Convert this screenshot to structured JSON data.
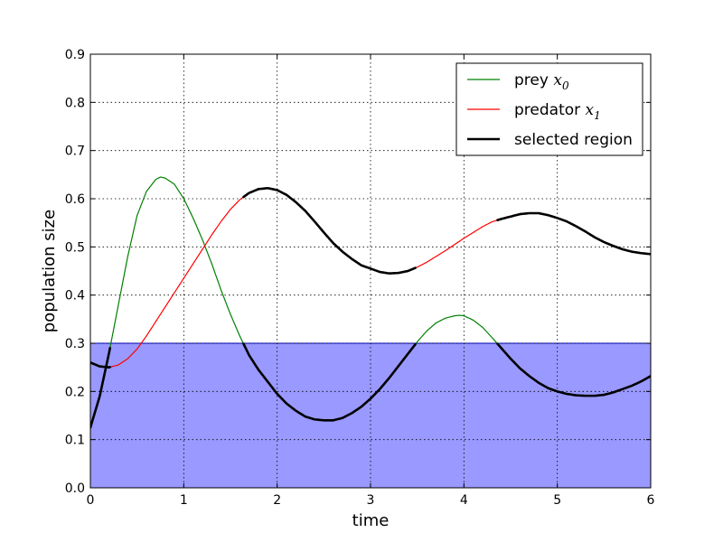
{
  "chart_data": {
    "type": "line",
    "title": "",
    "xlabel": "time",
    "ylabel": "population size",
    "xlim": [
      0,
      6
    ],
    "ylim": [
      0,
      0.9
    ],
    "x_ticks": [
      "0",
      "1",
      "2",
      "3",
      "4",
      "5",
      "6"
    ],
    "y_ticks": [
      "0.0",
      "0.1",
      "0.2",
      "0.3",
      "0.4",
      "0.5",
      "0.6",
      "0.7",
      "0.8",
      "0.9"
    ],
    "grid": true,
    "legend_position": "top-right",
    "region": {
      "ymin": 0,
      "ymax": 0.3,
      "color": "#9999ff",
      "edge_color": "#0000cc"
    },
    "series": [
      {
        "name": "prey",
        "subscript": "0",
        "color": "#008000",
        "x": [
          0,
          0.1,
          0.2,
          0.3,
          0.4,
          0.5,
          0.6,
          0.7,
          0.75,
          0.8,
          0.9,
          1.0,
          1.1,
          1.2,
          1.3,
          1.4,
          1.5,
          1.6,
          1.7,
          1.8,
          1.9,
          2.0,
          2.1,
          2.2,
          2.3,
          2.4,
          2.5,
          2.6,
          2.7,
          2.8,
          2.9,
          3.0,
          3.1,
          3.2,
          3.3,
          3.4,
          3.5,
          3.6,
          3.7,
          3.8,
          3.9,
          3.95,
          4.0,
          4.1,
          4.2,
          4.3,
          4.4,
          4.5,
          4.6,
          4.7,
          4.8,
          4.9,
          5.0,
          5.1,
          5.2,
          5.3,
          5.4,
          5.5,
          5.6,
          5.7,
          5.8,
          5.9,
          6.0
        ],
        "y": [
          0.125,
          0.19,
          0.28,
          0.38,
          0.48,
          0.565,
          0.615,
          0.64,
          0.645,
          0.643,
          0.63,
          0.6,
          0.56,
          0.515,
          0.465,
          0.41,
          0.36,
          0.315,
          0.275,
          0.245,
          0.22,
          0.195,
          0.175,
          0.16,
          0.148,
          0.142,
          0.14,
          0.14,
          0.145,
          0.155,
          0.168,
          0.185,
          0.205,
          0.228,
          0.253,
          0.278,
          0.303,
          0.325,
          0.342,
          0.352,
          0.357,
          0.358,
          0.357,
          0.348,
          0.333,
          0.312,
          0.29,
          0.268,
          0.248,
          0.232,
          0.218,
          0.207,
          0.2,
          0.195,
          0.192,
          0.191,
          0.191,
          0.193,
          0.198,
          0.205,
          0.212,
          0.221,
          0.232
        ]
      },
      {
        "name": "predator",
        "subscript": "1",
        "color": "#ff0000",
        "x": [
          0,
          0.1,
          0.2,
          0.3,
          0.4,
          0.5,
          0.6,
          0.7,
          0.8,
          0.9,
          1.0,
          1.1,
          1.2,
          1.3,
          1.4,
          1.5,
          1.6,
          1.7,
          1.8,
          1.9,
          2.0,
          2.1,
          2.2,
          2.3,
          2.4,
          2.5,
          2.6,
          2.7,
          2.8,
          2.9,
          3.0,
          3.1,
          3.2,
          3.3,
          3.4,
          3.5,
          3.6,
          3.7,
          3.8,
          3.9,
          4.0,
          4.1,
          4.2,
          4.3,
          4.4,
          4.5,
          4.6,
          4.7,
          4.8,
          4.9,
          5.0,
          5.1,
          5.2,
          5.3,
          5.4,
          5.5,
          5.6,
          5.7,
          5.8,
          5.9,
          6.0
        ],
        "y": [
          0.26,
          0.252,
          0.25,
          0.255,
          0.268,
          0.288,
          0.315,
          0.345,
          0.375,
          0.405,
          0.435,
          0.465,
          0.495,
          0.525,
          0.553,
          0.578,
          0.598,
          0.612,
          0.62,
          0.622,
          0.618,
          0.608,
          0.593,
          0.575,
          0.553,
          0.53,
          0.508,
          0.49,
          0.475,
          0.462,
          0.455,
          0.448,
          0.445,
          0.446,
          0.45,
          0.458,
          0.468,
          0.48,
          0.492,
          0.505,
          0.518,
          0.53,
          0.542,
          0.552,
          0.558,
          0.563,
          0.568,
          0.57,
          0.57,
          0.566,
          0.56,
          0.553,
          0.543,
          0.532,
          0.52,
          0.51,
          0.502,
          0.495,
          0.49,
          0.487,
          0.485
        ]
      }
    ],
    "selected_region_label": "selected region",
    "selected_region_color": "#000000",
    "legend": [
      {
        "label": "prey",
        "subscript": "0",
        "color": "#008000",
        "kind": "thin"
      },
      {
        "label": "predator",
        "subscript": "1",
        "color": "#ff0000",
        "kind": "thin"
      },
      {
        "label": "selected region",
        "subscript": "",
        "color": "#000000",
        "kind": "thick"
      }
    ]
  }
}
